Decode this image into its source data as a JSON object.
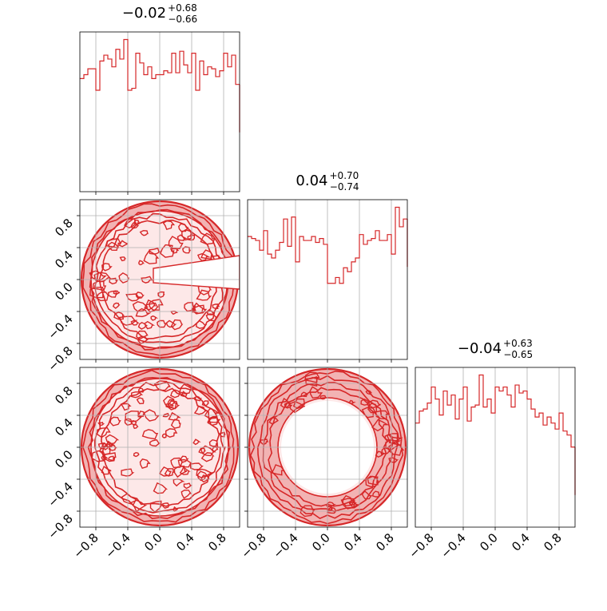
{
  "style": {
    "line_color": "#d62728",
    "fill_color": "#f2b3b3",
    "grid_color": "#b0b0b0",
    "axes_color": "#000000",
    "background": "#ffffff"
  },
  "chart_data": {
    "type": "corner",
    "grid": true,
    "range": [
      -1.0,
      1.0
    ],
    "tick_labels": [
      "−0.8",
      "−0.4",
      "0.0",
      "0.4",
      "0.8"
    ],
    "tick_values": [
      -0.8,
      -0.4,
      0.0,
      0.4,
      0.8
    ],
    "titles": [
      {
        "base": "−0.02",
        "sup": "+0.68",
        "sub": "−0.66"
      },
      {
        "base": "0.04",
        "sup": "+0.70",
        "sub": "−0.74"
      },
      {
        "base": "−0.04",
        "sup": "+0.63",
        "sub": "−0.65"
      }
    ],
    "histograms": [
      {
        "x_start": -1.0,
        "bin_width": 0.05,
        "counts": [
          58,
          60,
          63,
          63,
          52,
          67,
          70,
          68,
          64,
          73,
          68,
          78,
          52,
          53,
          71,
          66,
          60,
          64,
          58,
          60,
          60,
          62,
          61,
          71,
          61,
          72,
          65,
          61,
          71,
          52,
          67,
          60,
          64,
          63,
          59,
          62,
          71,
          64,
          70,
          55
        ]
      },
      {
        "x_start": -1.0,
        "bin_width": 0.05,
        "counts": [
          63,
          62,
          61,
          56,
          66,
          54,
          52,
          56,
          60,
          72,
          58,
          73,
          50,
          63,
          61,
          61,
          63,
          60,
          62,
          59,
          39,
          39,
          42,
          39,
          47,
          45,
          50,
          52,
          64,
          59,
          61,
          62,
          66,
          61,
          61,
          64,
          54,
          78,
          68,
          72
        ]
      },
      {
        "x_start": -1.0,
        "bin_width": 0.05,
        "counts": [
          52,
          58,
          59,
          62,
          70,
          64,
          56,
          68,
          61,
          66,
          54,
          64,
          70,
          53,
          60,
          61,
          76,
          60,
          64,
          57,
          70,
          68,
          70,
          66,
          60,
          71,
          67,
          68,
          64,
          59,
          55,
          57,
          51,
          55,
          52,
          49,
          57,
          48,
          46,
          40
        ]
      }
    ],
    "contour_panels": [
      {
        "x": "param0",
        "y": "param1",
        "pattern": "hole-right",
        "seed": 11
      },
      {
        "x": "param0",
        "y": "param2",
        "pattern": "ring-open",
        "seed": 23
      },
      {
        "x": "param1",
        "y": "param2",
        "pattern": "ring-hollow",
        "seed": 37
      }
    ]
  }
}
